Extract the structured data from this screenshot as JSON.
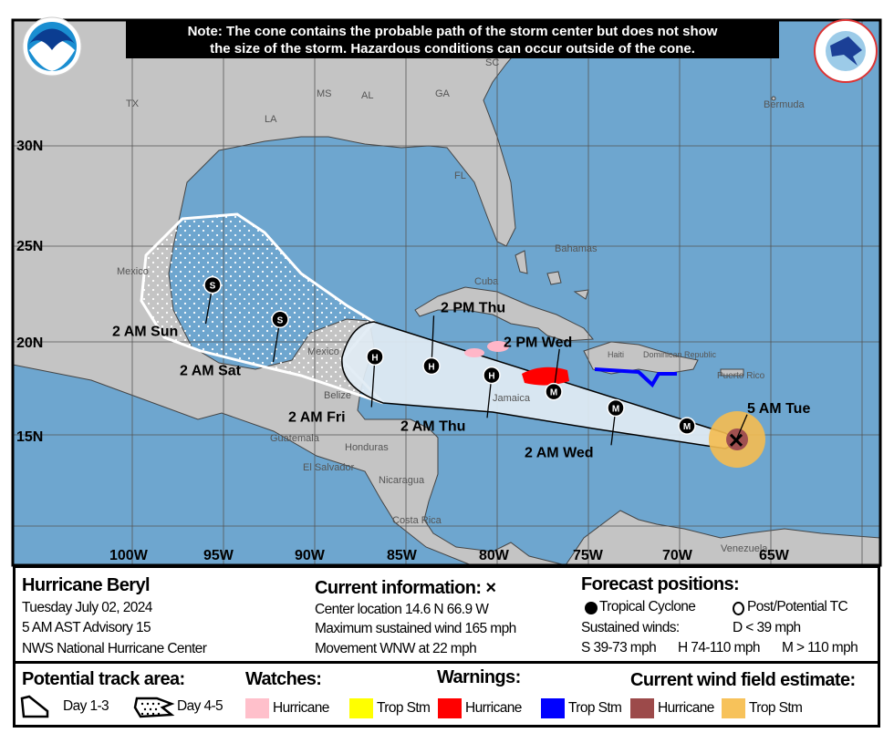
{
  "note": {
    "line1": "Note: The cone contains the probable path of the storm center but does not show",
    "line2": "the size of the storm. Hazardous conditions can occur outside of the cone."
  },
  "logos": {
    "left": "NOAA",
    "right": "NATIONAL WEATHER SERVICE"
  },
  "map": {
    "lon_labels": [
      "100W",
      "95W",
      "90W",
      "85W",
      "80W",
      "75W",
      "70W",
      "65W"
    ],
    "lat_labels": [
      "30N",
      "25N",
      "20N",
      "15N"
    ],
    "place_labels": [
      "TX",
      "LA",
      "MS",
      "AL",
      "GA",
      "SC",
      "FL",
      "Bermuda",
      "Bahamas",
      "Cuba",
      "Mexico",
      "Mexico",
      "Belize",
      "Guatemala",
      "Honduras",
      "El Salvador",
      "Nicaragua",
      "Costa Rica",
      "Jamaica",
      "Haiti",
      "Dominican Republic",
      "Puerto Rico",
      "Venezuela"
    ],
    "colors": {
      "ocean": "#6ea6cf",
      "land": "#c4c4c4",
      "cone_day13": "#e1ecf4",
      "hurricane_warning": "#ff0000",
      "trop_storm_warning": "#0000ff",
      "hurricane_watch": "#ffb6c8",
      "wind_hurricane": "#a05050",
      "wind_trop_storm": "#f5bd50"
    }
  },
  "storm": {
    "current": {
      "label": "5 AM Tue",
      "lat": 14.6,
      "lon": -66.9
    },
    "forecast": [
      {
        "label": "",
        "code": "M",
        "lat": 15.4,
        "lon": -69.6
      },
      {
        "label": "2 AM Wed",
        "code": "M",
        "lat": 16.4,
        "lon": -73.5
      },
      {
        "label": "2 PM Wed",
        "code": "M",
        "lat": 17.3,
        "lon": -76.9
      },
      {
        "label": "2 AM Thu",
        "code": "H",
        "lat": 18.2,
        "lon": -80.3
      },
      {
        "label": "2 PM Thu",
        "code": "H",
        "lat": 18.7,
        "lon": -83.6
      },
      {
        "label": "2 AM Fri",
        "code": "H",
        "lat": 19.2,
        "lon": -86.7
      },
      {
        "label": "2 AM Sat",
        "code": "S",
        "lat": 21.2,
        "lon": -91.9
      },
      {
        "label": "2 AM Sun",
        "code": "S",
        "lat": 23.0,
        "lon": -95.6
      }
    ]
  },
  "info": {
    "storm_name": "Hurricane Beryl",
    "date": "Tuesday July 02, 2024",
    "advisory": "5 AM AST Advisory 15",
    "center": "NWS National Hurricane Center",
    "current_title": "Current information: ×",
    "location": "Center location 14.6 N 66.9 W",
    "max_wind": "Maximum sustained wind 165 mph",
    "movement": "Movement WNW at 22 mph",
    "forecast_title": "Forecast positions:",
    "tropical_cyclone": "Tropical Cyclone",
    "post_potential": "Post/Potential TC",
    "sustained": "Sustained winds:",
    "d_range": "D < 39 mph",
    "s_range": "S 39-73 mph",
    "h_range": "H 74-110 mph",
    "m_range": "M > 110 mph"
  },
  "legend": {
    "track_title": "Potential track area:",
    "day13": "Day 1-3",
    "day45": "Day 4-5",
    "watches_title": "Watches:",
    "watch_hurricane": "Hurricane",
    "watch_ts": "Trop Stm",
    "warnings_title": "Warnings:",
    "warn_hurricane": "Hurricane",
    "warn_ts": "Trop Stm",
    "wind_title": "Current wind field estimate:",
    "wind_hurricane": "Hurricane",
    "wind_ts": "Trop Stm",
    "colors": {
      "watch_hurricane": "#ffc0cb",
      "watch_ts": "#ffff00",
      "warn_hurricane": "#ff0000",
      "warn_ts": "#0000ff",
      "wind_hurricane": "#9c4a4a",
      "wind_ts": "#f7c25a"
    }
  }
}
